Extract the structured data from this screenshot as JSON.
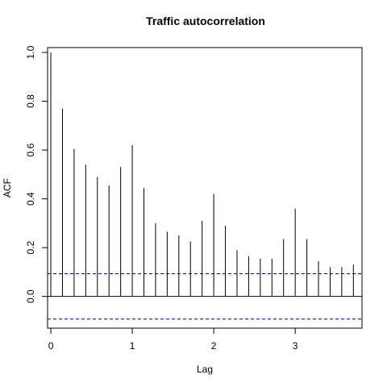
{
  "chart_data": {
    "type": "bar",
    "title": "Traffic autocorrelation",
    "xlabel": "Lag",
    "ylabel": "ACF",
    "xlim": [
      -0.04,
      3.82
    ],
    "ylim": [
      -0.13,
      1.02
    ],
    "xticks": [
      0,
      1,
      2,
      3
    ],
    "yticks": [
      0.0,
      0.2,
      0.4,
      0.6,
      0.8,
      1.0
    ],
    "ytick_labels": [
      "0.0",
      "0.2",
      "0.4",
      "0.6",
      "0.8",
      "1.0"
    ],
    "lags": [
      0,
      0.1429,
      0.2857,
      0.4286,
      0.5714,
      0.7143,
      0.8571,
      1.0,
      1.1429,
      1.2857,
      1.4286,
      1.5714,
      1.7143,
      1.8571,
      2.0,
      2.1429,
      2.2857,
      2.4286,
      2.5714,
      2.7143,
      2.8571,
      3.0,
      3.1429,
      3.2857,
      3.4286,
      3.5714,
      3.7143
    ],
    "acf": [
      1.0,
      0.77,
      0.605,
      0.54,
      0.49,
      0.455,
      0.53,
      0.62,
      0.445,
      0.3,
      0.265,
      0.25,
      0.225,
      0.31,
      0.42,
      0.29,
      0.19,
      0.165,
      0.155,
      0.155,
      0.235,
      0.36,
      0.235,
      0.145,
      0.12,
      0.12,
      0.13
    ],
    "confidence_band": [
      0.093,
      -0.093
    ],
    "colors": {
      "bars": "#000000",
      "confidence": "#00008B",
      "zero_line": "#000000",
      "frame": "#000000"
    }
  }
}
